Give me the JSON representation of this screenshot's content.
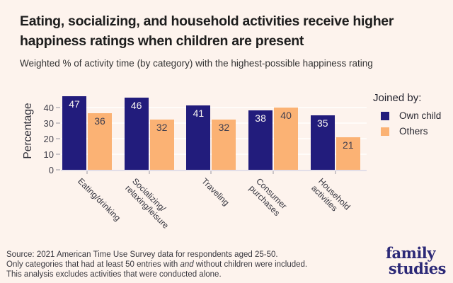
{
  "title": "Eating, socializing, and household activities receive higher\nhappiness ratings when children are present",
  "subtitle": "Weighted % of activity time (by category) with the highest-possible happiness rating",
  "chart_data": {
    "type": "bar",
    "categories": [
      "Eating/drinking",
      "Socializing/\nrelaxing/leisure",
      "Traveling",
      "Consumer\npurchases",
      "Household\nactivities"
    ],
    "series": [
      {
        "name": "Own child",
        "color": "#221c7c",
        "label_color": "#faf6f2",
        "values": [
          47,
          46,
          41,
          38,
          35
        ]
      },
      {
        "name": "Others",
        "color": "#fbb274",
        "label_color": "#3f3e4e",
        "values": [
          36,
          32,
          32,
          40,
          21
        ]
      }
    ],
    "ylabel": "Percentage",
    "yticks": [
      0,
      10,
      20,
      30,
      40
    ],
    "ylim": [
      0,
      49
    ],
    "legend_title": "Joined by:",
    "legend_position": "right",
    "grid": "horizontal"
  },
  "footer": {
    "line1": "Source: 2021 American Time Use Survey data for respondents aged 25-50.",
    "line2_pre": "Only categories that had at least 50 entries with ",
    "line2_em": "and",
    "line2_post": " without children were included.",
    "line3": "This analysis excludes activities that were conducted alone."
  },
  "logo": {
    "line1": "family",
    "line2": "studies"
  },
  "colors": {
    "background": "#fdf3ed",
    "bar_navy": "#221c7c",
    "bar_orange": "#fbb274",
    "logo_navy": "#2c2977",
    "baseline": "#e2dee8",
    "gridline": "#fffdfa"
  }
}
